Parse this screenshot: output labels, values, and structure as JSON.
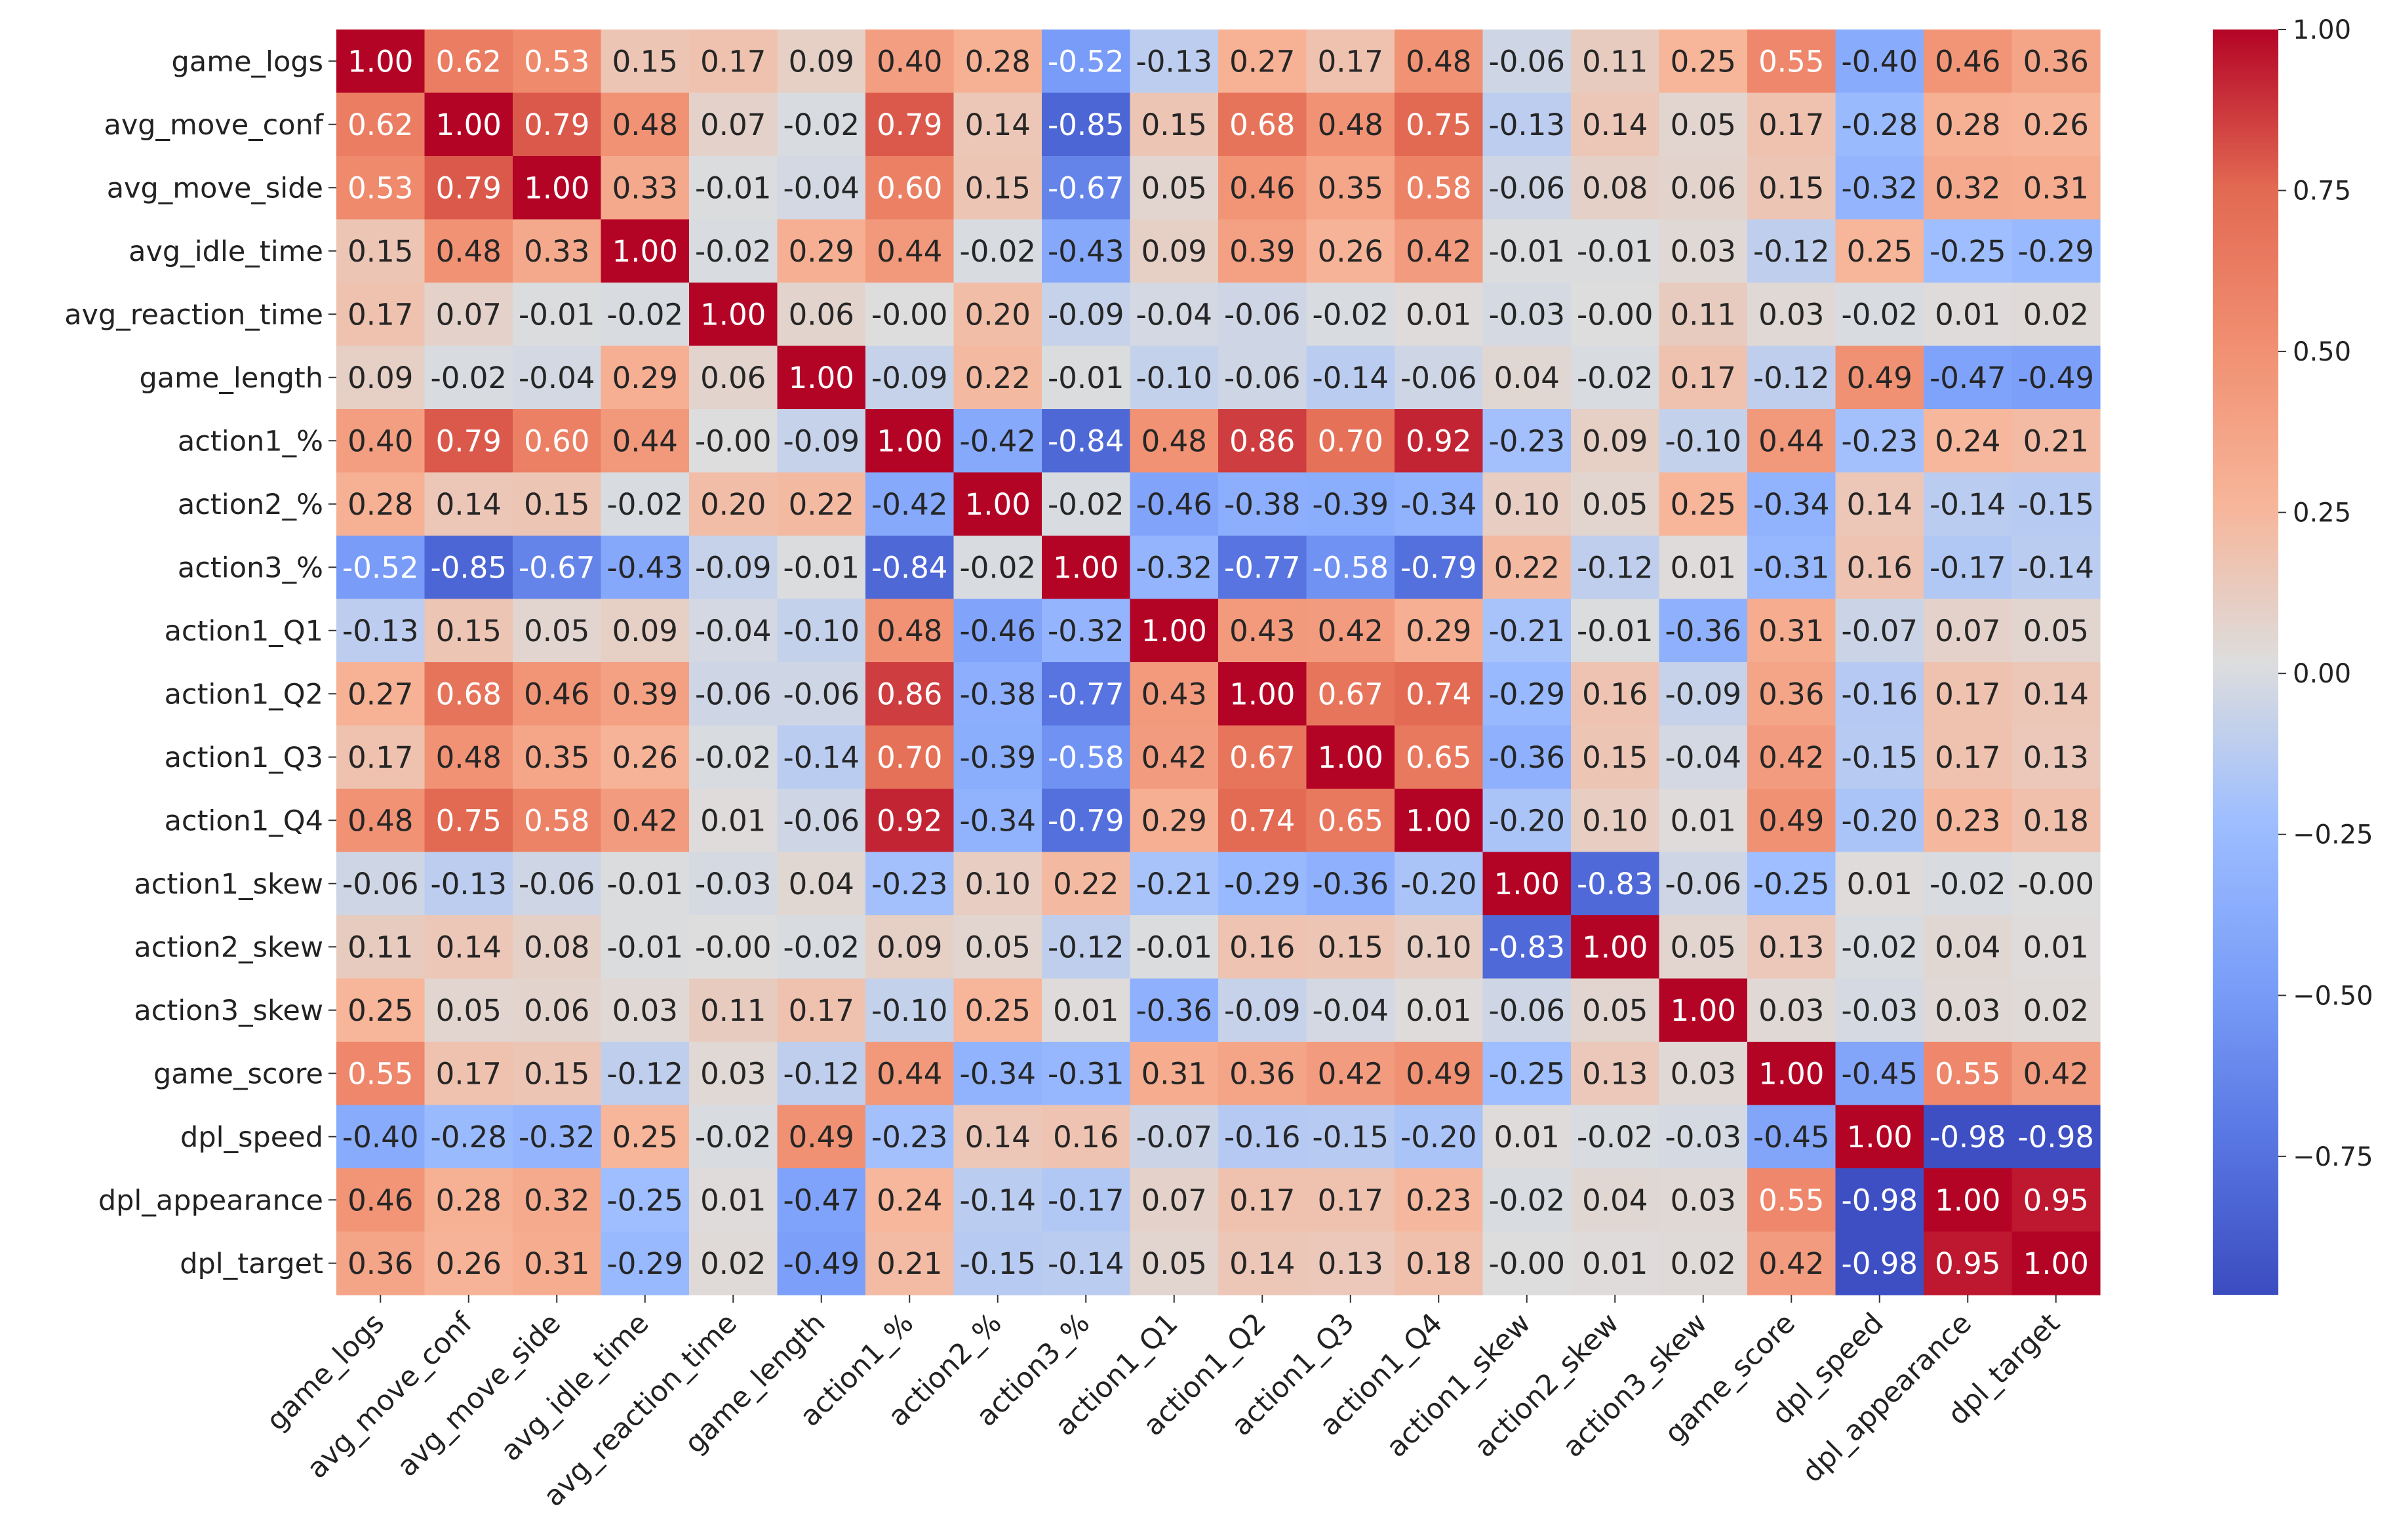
{
  "chart_data": {
    "type": "heatmap",
    "title": "",
    "xlabel": "",
    "ylabel": "",
    "labels": [
      "game_logs",
      "avg_move_conf",
      "avg_move_side",
      "avg_idle_time",
      "avg_reaction_time",
      "game_length",
      "action1_%",
      "action2_%",
      "action3_%",
      "action1_Q1",
      "action1_Q2",
      "action1_Q3",
      "action1_Q4",
      "action1_skew",
      "action2_skew",
      "action3_skew",
      "game_score",
      "dpl_speed",
      "dpl_appearance",
      "dpl_target"
    ],
    "matrix": [
      [
        1.0,
        0.62,
        0.53,
        0.15,
        0.17,
        0.09,
        0.4,
        0.28,
        -0.52,
        -0.13,
        0.27,
        0.17,
        0.48,
        -0.06,
        0.11,
        0.25,
        0.55,
        -0.4,
        0.46,
        0.36
      ],
      [
        0.62,
        1.0,
        0.79,
        0.48,
        0.07,
        -0.02,
        0.79,
        0.14,
        -0.85,
        0.15,
        0.68,
        0.48,
        0.75,
        -0.13,
        0.14,
        0.05,
        0.17,
        -0.28,
        0.28,
        0.26
      ],
      [
        0.53,
        0.79,
        1.0,
        0.33,
        -0.01,
        -0.04,
        0.6,
        0.15,
        -0.67,
        0.05,
        0.46,
        0.35,
        0.58,
        -0.06,
        0.08,
        0.06,
        0.15,
        -0.32,
        0.32,
        0.31
      ],
      [
        0.15,
        0.48,
        0.33,
        1.0,
        -0.02,
        0.29,
        0.44,
        -0.02,
        -0.43,
        0.09,
        0.39,
        0.26,
        0.42,
        -0.01,
        -0.01,
        0.03,
        -0.12,
        0.25,
        -0.25,
        -0.29
      ],
      [
        0.17,
        0.07,
        -0.01,
        -0.02,
        1.0,
        0.06,
        -0.0,
        0.2,
        -0.09,
        -0.04,
        -0.06,
        -0.02,
        0.01,
        -0.03,
        -0.0,
        0.11,
        0.03,
        -0.02,
        0.01,
        0.02
      ],
      [
        0.09,
        -0.02,
        -0.04,
        0.29,
        0.06,
        1.0,
        -0.09,
        0.22,
        -0.01,
        -0.1,
        -0.06,
        -0.14,
        -0.06,
        0.04,
        -0.02,
        0.17,
        -0.12,
        0.49,
        -0.47,
        -0.49
      ],
      [
        0.4,
        0.79,
        0.6,
        0.44,
        -0.0,
        -0.09,
        1.0,
        -0.42,
        -0.84,
        0.48,
        0.86,
        0.7,
        0.92,
        -0.23,
        0.09,
        -0.1,
        0.44,
        -0.23,
        0.24,
        0.21
      ],
      [
        0.28,
        0.14,
        0.15,
        -0.02,
        0.2,
        0.22,
        -0.42,
        1.0,
        -0.02,
        -0.46,
        -0.38,
        -0.39,
        -0.34,
        0.1,
        0.05,
        0.25,
        -0.34,
        0.14,
        -0.14,
        -0.15
      ],
      [
        -0.52,
        -0.85,
        -0.67,
        -0.43,
        -0.09,
        -0.01,
        -0.84,
        -0.02,
        1.0,
        -0.32,
        -0.77,
        -0.58,
        -0.79,
        0.22,
        -0.12,
        0.01,
        -0.31,
        0.16,
        -0.17,
        -0.14
      ],
      [
        -0.13,
        0.15,
        0.05,
        0.09,
        -0.04,
        -0.1,
        0.48,
        -0.46,
        -0.32,
        1.0,
        0.43,
        0.42,
        0.29,
        -0.21,
        -0.01,
        -0.36,
        0.31,
        -0.07,
        0.07,
        0.05
      ],
      [
        0.27,
        0.68,
        0.46,
        0.39,
        -0.06,
        -0.06,
        0.86,
        -0.38,
        -0.77,
        0.43,
        1.0,
        0.67,
        0.74,
        -0.29,
        0.16,
        -0.09,
        0.36,
        -0.16,
        0.17,
        0.14
      ],
      [
        0.17,
        0.48,
        0.35,
        0.26,
        -0.02,
        -0.14,
        0.7,
        -0.39,
        -0.58,
        0.42,
        0.67,
        1.0,
        0.65,
        -0.36,
        0.15,
        -0.04,
        0.42,
        -0.15,
        0.17,
        0.13
      ],
      [
        0.48,
        0.75,
        0.58,
        0.42,
        0.01,
        -0.06,
        0.92,
        -0.34,
        -0.79,
        0.29,
        0.74,
        0.65,
        1.0,
        -0.2,
        0.1,
        0.01,
        0.49,
        -0.2,
        0.23,
        0.18
      ],
      [
        -0.06,
        -0.13,
        -0.06,
        -0.01,
        -0.03,
        0.04,
        -0.23,
        0.1,
        0.22,
        -0.21,
        -0.29,
        -0.36,
        -0.2,
        1.0,
        -0.83,
        -0.06,
        -0.25,
        0.01,
        -0.02,
        -0.0
      ],
      [
        0.11,
        0.14,
        0.08,
        -0.01,
        -0.0,
        -0.02,
        0.09,
        0.05,
        -0.12,
        -0.01,
        0.16,
        0.15,
        0.1,
        -0.83,
        1.0,
        0.05,
        0.13,
        -0.02,
        0.04,
        0.01
      ],
      [
        0.25,
        0.05,
        0.06,
        0.03,
        0.11,
        0.17,
        -0.1,
        0.25,
        0.01,
        -0.36,
        -0.09,
        -0.04,
        0.01,
        -0.06,
        0.05,
        1.0,
        0.03,
        -0.03,
        0.03,
        0.02
      ],
      [
        0.55,
        0.17,
        0.15,
        -0.12,
        0.03,
        -0.12,
        0.44,
        -0.34,
        -0.31,
        0.31,
        0.36,
        0.42,
        0.49,
        -0.25,
        0.13,
        0.03,
        1.0,
        -0.45,
        0.55,
        0.42
      ],
      [
        -0.4,
        -0.28,
        -0.32,
        0.25,
        -0.02,
        0.49,
        -0.23,
        0.14,
        0.16,
        -0.07,
        -0.16,
        -0.15,
        -0.2,
        0.01,
        -0.02,
        -0.03,
        -0.45,
        1.0,
        -0.98,
        -0.98
      ],
      [
        0.46,
        0.28,
        0.32,
        -0.25,
        0.01,
        -0.47,
        0.24,
        -0.14,
        -0.17,
        0.07,
        0.17,
        0.17,
        0.23,
        -0.02,
        0.04,
        0.03,
        0.55,
        -0.98,
        1.0,
        0.95
      ],
      [
        0.36,
        0.26,
        0.31,
        -0.29,
        0.02,
        -0.49,
        0.21,
        -0.15,
        -0.14,
        0.05,
        0.14,
        0.13,
        0.18,
        -0.0,
        0.01,
        0.02,
        0.42,
        -0.98,
        0.95,
        1.0
      ]
    ],
    "colormap": "coolwarm",
    "vmin": -1.0,
    "vmax": 1.0,
    "annotations": "two-decimal values in every cell",
    "colorbar": {
      "position": "right",
      "ticks": [
        1.0,
        0.75,
        0.5,
        0.25,
        0.0,
        -0.25,
        -0.5,
        -0.75
      ],
      "tick_labels": [
        "1.00",
        "0.75",
        "0.50",
        "0.25",
        "0.00",
        "−0.25",
        "−0.50",
        "−0.75"
      ]
    },
    "grid": false,
    "legend": "none"
  }
}
